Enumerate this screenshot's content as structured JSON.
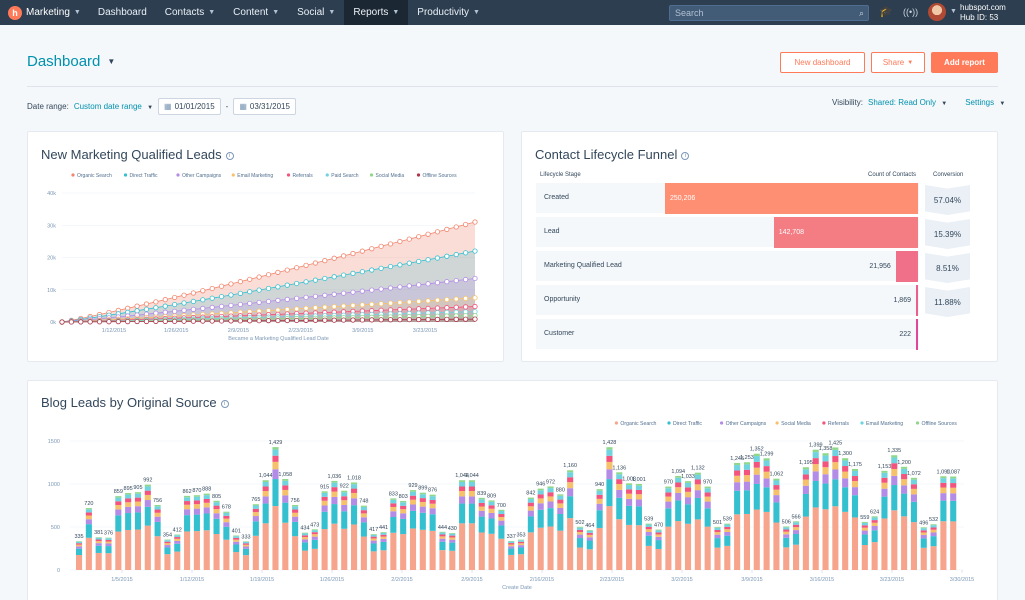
{
  "nav": {
    "brand": "Marketing",
    "items": [
      {
        "label": "Dashboard",
        "caret": false
      },
      {
        "label": "Contacts",
        "caret": true
      },
      {
        "label": "Content",
        "caret": true
      },
      {
        "label": "Social",
        "caret": true
      },
      {
        "label": "Reports",
        "caret": true,
        "active": true
      },
      {
        "label": "Productivity",
        "caret": true
      }
    ],
    "search_placeholder": "Search",
    "account": "hubspot.com",
    "hub_id": "Hub ID: 53"
  },
  "header": {
    "title": "Dashboard",
    "new_dashboard": "New dashboard",
    "share": "Share",
    "add_report": "Add report"
  },
  "filters": {
    "date_range_label": "Date range:",
    "date_range_value": "Custom date range",
    "start_date": "01/01/2015",
    "separator": "-",
    "end_date": "03/31/2015",
    "visibility_label": "Visibility:",
    "visibility_value": "Shared: Read Only",
    "settings": "Settings"
  },
  "mql_card": {
    "title": "New Marketing Qualified Leads",
    "chart_data": {
      "type": "area",
      "xlabel": "Became a Marketing Qualified Lead Date",
      "ylabel": "",
      "y_ticks": [
        "0k",
        "10k",
        "20k",
        "30k",
        "40k"
      ],
      "ylim": [
        0,
        40000
      ],
      "x_ticks": [
        "1/12/2015",
        "1/26/2015",
        "2/9/2015",
        "2/23/2015",
        "3/9/2015",
        "3/23/2015"
      ],
      "x_range": [
        "1/1/2015",
        "3/31/2015"
      ],
      "stacked": false,
      "legend_position": "top",
      "series": [
        {
          "name": "Organic Search",
          "color": "#f2866e",
          "start": 0,
          "end": 31000
        },
        {
          "name": "Direct Traffic",
          "color": "#35c0d0",
          "start": 0,
          "end": 22000
        },
        {
          "name": "Other Campaigns",
          "color": "#b28ce6",
          "start": 0,
          "end": 13500
        },
        {
          "name": "Email Marketing",
          "color": "#f5c26b",
          "start": 0,
          "end": 7500
        },
        {
          "name": "Referrals",
          "color": "#f2547d",
          "start": 0,
          "end": 4800
        },
        {
          "name": "Paid Search",
          "color": "#6fd3e0",
          "start": 0,
          "end": 3200
        },
        {
          "name": "Social Media",
          "color": "#8fd88a",
          "start": 0,
          "end": 2000
        },
        {
          "name": "Offline Sources",
          "color": "#b2334a",
          "start": 0,
          "end": 900
        }
      ]
    }
  },
  "funnel_card": {
    "title": "Contact Lifecycle Funnel",
    "col_stage": "Lifecycle Stage",
    "col_count": "Count of Contacts",
    "col_conversion": "Conversion",
    "stages": [
      {
        "name": "Created",
        "count": "250,206",
        "value": 250206,
        "conversion": "57.04%",
        "color": "#ff8f73",
        "label_inside": true
      },
      {
        "name": "Lead",
        "count": "142,708",
        "value": 142708,
        "conversion": "15.39%",
        "color": "#f47d84",
        "label_inside": true
      },
      {
        "name": "Marketing Qualified Lead",
        "count": "21,956",
        "value": 21956,
        "conversion": "8.51%",
        "color": "#f0708a",
        "label_inside": false
      },
      {
        "name": "Opportunity",
        "count": "1,869",
        "value": 1869,
        "conversion": "11.88%",
        "color": "#ea5f8c",
        "label_inside": false
      },
      {
        "name": "Customer",
        "count": "222",
        "value": 222,
        "conversion": "",
        "color": "#e0479a",
        "label_inside": false
      }
    ]
  },
  "blog_card": {
    "title": "Blog Leads by Original Source",
    "chart_data": {
      "type": "bar",
      "stacked": true,
      "xlabel": "Create Date",
      "ylabel": "",
      "ylim": [
        0,
        1500
      ],
      "y_ticks": [
        "0",
        "500",
        "1000",
        "1500"
      ],
      "x_ticks": [
        "1/5/2015",
        "1/12/2015",
        "1/19/2015",
        "1/26/2015",
        "2/2/2015",
        "2/9/2015",
        "2/16/2015",
        "2/23/2015",
        "3/2/2015",
        "3/9/2015",
        "3/16/2015",
        "3/23/2015",
        "3/30/2015"
      ],
      "legend_position": "top-right",
      "series_names": [
        "Organic Search",
        "Direct Traffic",
        "Other Campaigns",
        "Social Media",
        "Referrals",
        "Email Marketing",
        "Offline Sources"
      ],
      "series_colors": [
        "#f7a48c",
        "#35c0d0",
        "#b28ce6",
        "#f5c26b",
        "#f2547d",
        "#6fd3e0",
        "#8fd88a"
      ],
      "series_shares": [
        0.52,
        0.22,
        0.08,
        0.06,
        0.05,
        0.05,
        0.02
      ],
      "totals": [
        335,
        720,
        381,
        376,
        859,
        895,
        905,
        992,
        756,
        354,
        412,
        862,
        870,
        888,
        805,
        678,
        401,
        333,
        765,
        1044,
        1429,
        1058,
        756,
        434,
        473,
        915,
        1036,
        922,
        1018,
        748,
        417,
        441,
        833,
        803,
        929,
        899,
        876,
        444,
        430,
        1044,
        1044,
        839,
        809,
        700,
        337,
        353,
        842,
        946,
        972,
        880,
        1160,
        502,
        464,
        940,
        1428,
        1136,
        1008,
        1001,
        539,
        470,
        970,
        1094,
        1033,
        1132,
        970,
        501,
        539,
        1245,
        1253,
        1352,
        1299,
        1062,
        506,
        566,
        1195,
        1399,
        1358,
        1425,
        1300,
        1175,
        559,
        624,
        1153,
        1335,
        1200,
        1072,
        496,
        532,
        1090,
        1087
      ],
      "labels": [
        "335",
        "720",
        "381",
        "376",
        "859",
        "895",
        "905",
        "992",
        "756",
        "354",
        "412",
        "862",
        "870",
        "888",
        "805",
        "678",
        "401",
        "333",
        "765",
        "1,044",
        "1,429",
        "1,058",
        "756",
        "434",
        "473",
        "915",
        "1,036",
        "922",
        "1,018",
        "748",
        "417",
        "441",
        "833",
        "803",
        "929",
        "899",
        "876",
        "444",
        "430",
        "1,044",
        "1,044",
        "839",
        "809",
        "700",
        "337",
        "353",
        "842",
        "946",
        "972",
        "880",
        "1,160",
        "502",
        "464",
        "940",
        "1,428",
        "1,136",
        "1,008",
        "1,001",
        "539",
        "470",
        "970",
        "1,094",
        "1,033",
        "1,132",
        "970",
        "501",
        "539",
        "1,245",
        "1,253",
        "1,352",
        "1,299",
        "1,062",
        "506",
        "566",
        "1,195",
        "1,399",
        "1,358",
        "1,425",
        "1,300",
        "1,175",
        "559",
        "624",
        "1,153",
        "1,335",
        "1,200",
        "1,072",
        "496",
        "532",
        "1,090",
        "1,087"
      ]
    }
  }
}
